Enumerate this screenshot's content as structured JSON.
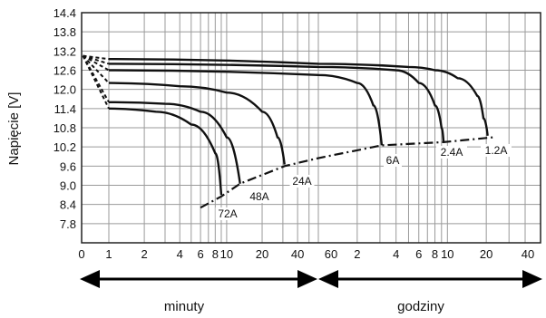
{
  "chart_data": {
    "type": "line",
    "title": "",
    "ylabel": "Napięcie [V]",
    "xlabel": "",
    "ylim": [
      7.2,
      14.4
    ],
    "grid": true,
    "y_ticks": [
      "14.4",
      "13.8",
      "13.2",
      "12.6",
      "12.0",
      "11.4",
      "10.8",
      "10.2",
      "9.6",
      "9.0",
      "8.4",
      "7.8"
    ],
    "x_ticks": [
      "0",
      "1",
      "2",
      "4",
      "6",
      "8",
      "10",
      "20",
      "40",
      "60",
      "2",
      "4",
      "6",
      "8",
      "10",
      "20",
      "40"
    ],
    "ranges": [
      {
        "label": "minuty",
        "x_from": 0,
        "x_to": 60,
        "unit": "min"
      },
      {
        "label": "godziny",
        "x_from": 1,
        "x_to": 40,
        "unit": "h"
      }
    ],
    "series": [
      {
        "name": "1.2A",
        "points": [
          [
            0.05,
            13.05
          ],
          [
            1,
            12.95
          ],
          [
            60,
            12.8
          ],
          [
            300,
            12.7
          ],
          [
            480,
            12.6
          ],
          [
            720,
            12.35
          ],
          [
            1020,
            11.8
          ],
          [
            1140,
            11.1
          ],
          [
            1230,
            10.55
          ]
        ]
      },
      {
        "name": "2.4A",
        "points": [
          [
            0.05,
            13.05
          ],
          [
            1,
            12.8
          ],
          [
            60,
            12.7
          ],
          [
            240,
            12.6
          ],
          [
            360,
            12.2
          ],
          [
            480,
            11.5
          ],
          [
            540,
            10.8
          ],
          [
            560,
            10.35
          ]
        ]
      },
      {
        "name": "6A",
        "points": [
          [
            0.05,
            13.05
          ],
          [
            1,
            12.6
          ],
          [
            60,
            12.45
          ],
          [
            120,
            12.2
          ],
          [
            160,
            11.5
          ],
          [
            186,
            10.25
          ]
        ]
      },
      {
        "name": "24A",
        "points": [
          [
            0.05,
            13.05
          ],
          [
            1,
            12.2
          ],
          [
            4,
            12.1
          ],
          [
            10,
            11.9
          ],
          [
            20,
            11.3
          ],
          [
            27,
            10.5
          ],
          [
            31,
            9.65
          ]
        ]
      },
      {
        "name": "48A",
        "points": [
          [
            0.05,
            13.05
          ],
          [
            1,
            11.6
          ],
          [
            3,
            11.55
          ],
          [
            6,
            11.3
          ],
          [
            10,
            10.5
          ],
          [
            13,
            9.05
          ]
        ]
      },
      {
        "name": "72A",
        "points": [
          [
            0.05,
            13.05
          ],
          [
            1,
            11.4
          ],
          [
            2.5,
            11.3
          ],
          [
            5,
            10.9
          ],
          [
            8,
            10.0
          ],
          [
            9,
            8.7
          ]
        ]
      },
      {
        "name": "cutoff",
        "points": [
          [
            6,
            8.3
          ],
          [
            9,
            8.65
          ],
          [
            13,
            9.05
          ],
          [
            31,
            9.6
          ],
          [
            60,
            9.85
          ],
          [
            186,
            10.25
          ],
          [
            560,
            10.35
          ],
          [
            1350,
            10.5
          ]
        ]
      }
    ],
    "curve_labels": [
      "72A",
      "48A",
      "24A",
      "6A",
      "2.4A",
      "1.2A"
    ]
  }
}
